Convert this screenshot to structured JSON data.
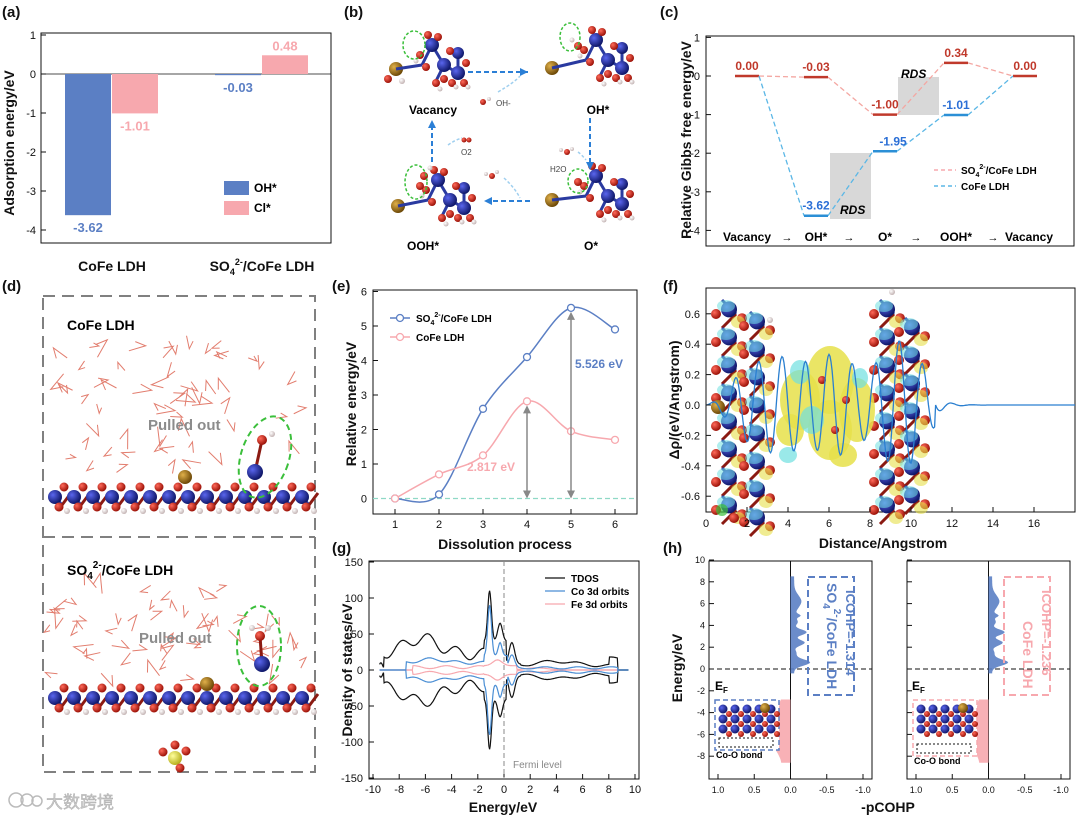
{
  "panels": {
    "a": "(a)",
    "b": "(b)",
    "c": "(c)",
    "d": "(d)",
    "e": "(e)",
    "f": "(f)",
    "g": "(g)",
    "h": "(h)"
  },
  "colors": {
    "blue": "#5b7fc4",
    "pink": "#f7a8ae",
    "red": "#c0392b",
    "lightblue": "#5bb7e6",
    "navy": "#1e2a8c",
    "atomred": "#d02a1f",
    "atomgold": "#a8791c",
    "yellow": "#e6e04a",
    "cyan": "#6fe0e0",
    "green": "#3bbf3b"
  },
  "chart_data": [
    {
      "panel": "a",
      "type": "bar",
      "categories": [
        "CoFe LDH",
        "SO4 2-/CoFe LDH"
      ],
      "series": [
        {
          "name": "OH*",
          "values": [
            -3.62,
            -0.03
          ]
        },
        {
          "name": "Cl*",
          "values": [
            -1.01,
            0.48
          ]
        }
      ],
      "value_labels": [
        "-3.62",
        "-1.01",
        "-0.03",
        "0.48"
      ],
      "ylabel": "Adsorption energy/eV",
      "ylim": [
        -4.6,
        1
      ],
      "yticks": [
        "1",
        "0",
        "-1",
        "-2",
        "-3",
        "-4"
      ],
      "legend": "bottom-right"
    },
    {
      "panel": "c",
      "type": "line",
      "categories": [
        "Vacancy",
        "OH*",
        "O*",
        "OOH*",
        "Vacancy"
      ],
      "series": [
        {
          "name": "SO4 2-/CoFe LDH",
          "values": [
            0.0,
            -0.03,
            -1.0,
            0.34,
            0.0
          ]
        },
        {
          "name": "CoFe LDH",
          "values": [
            0.0,
            -3.62,
            -1.95,
            -1.01,
            0.0
          ]
        }
      ],
      "value_labels": {
        "so4": [
          "0.00",
          "-0.03",
          "-1.00",
          "0.34",
          "0.00"
        ],
        "cofe": [
          "-3.62",
          "-1.95",
          "-1.01"
        ]
      },
      "annotation": "RDS",
      "ylabel": "Relative Gibbs free energy/eV",
      "ylim": [
        -4,
        1
      ],
      "yticks": [
        "1",
        "0",
        "-1",
        "-2",
        "-3",
        "-4"
      ],
      "legend": "right"
    },
    {
      "panel": "e",
      "type": "line",
      "x": [
        1,
        2,
        3,
        4,
        5,
        6
      ],
      "series": [
        {
          "name": "SO4 2-/CoFe LDH",
          "values": [
            0,
            0.12,
            2.6,
            4.1,
            5.526,
            4.9
          ]
        },
        {
          "name": "CoFe LDH",
          "values": [
            0,
            0.7,
            1.25,
            2.817,
            1.95,
            1.7
          ]
        }
      ],
      "annotations": [
        "5.526 eV",
        "2.817 eV"
      ],
      "xlabel": "Dissolution process",
      "ylabel": "Relative energy/eV",
      "xlim": [
        0.5,
        6.5
      ],
      "ylim": [
        -0.5,
        6
      ],
      "xticks": [
        "1",
        "2",
        "3",
        "4",
        "5",
        "6"
      ],
      "yticks": [
        "0",
        "1",
        "2",
        "3",
        "4",
        "5",
        "6"
      ],
      "legend": "top-left"
    },
    {
      "panel": "f",
      "type": "line",
      "xlabel": "Distance/Angstrom",
      "ylabel": "Δρ/(eV/Angstrom)",
      "xlim": [
        0,
        18
      ],
      "ylim": [
        -0.7,
        0.7
      ],
      "xticks": [
        "0",
        "2",
        "4",
        "6",
        "8",
        "10",
        "12",
        "14",
        "16"
      ],
      "yticks": [
        "0.6",
        "0.4",
        "0.2",
        "0.0",
        "-0.2",
        "-0.4",
        "-0.6"
      ]
    },
    {
      "panel": "g",
      "type": "line",
      "series": [
        {
          "name": "TDOS"
        },
        {
          "name": "Co 3d orbits"
        },
        {
          "name": "Fe 3d orbits"
        }
      ],
      "annotation": "Fermi level",
      "xlabel": "Energy/eV",
      "ylabel": "Density of states/eV",
      "xlim": [
        -10,
        10
      ],
      "ylim": [
        -150,
        150
      ],
      "xticks": [
        "-10",
        "-8",
        "-6",
        "-4",
        "-2",
        "0",
        "2",
        "4",
        "6",
        "8",
        "10"
      ],
      "yticks": [
        "150",
        "100",
        "50",
        "0",
        "-50",
        "-100",
        "-150"
      ],
      "legend": "top-right"
    },
    {
      "panel": "h",
      "type": "area",
      "xlabel": "-pCOHP",
      "ylabel": "Energy/eV",
      "xlim": [
        1.0,
        -1.0
      ],
      "ylim": [
        -9,
        10
      ],
      "xticks": [
        "1.0",
        "0.5",
        "0.0",
        "-0.5",
        "-1.0"
      ],
      "yticks": [
        "10",
        "8",
        "6",
        "4",
        "2",
        "0",
        "-2",
        "-4",
        "-6",
        "-8"
      ],
      "ef": "EF",
      "left_box": [
        "SO4 2-/CoFe LDH",
        "ICOHP=-1.314"
      ],
      "right_box": [
        "CoFe LDH",
        "ICOHP=-1.236"
      ],
      "inset": "Co-O bond"
    }
  ],
  "panel_b": {
    "states": [
      "Vacancy",
      "OH*",
      "OOH*",
      "O*"
    ],
    "species": [
      "OH-",
      "O2",
      "H2O"
    ]
  },
  "panel_d": {
    "top_label": "CoFe LDH",
    "bottom_label": "SO4 2-/CoFe LDH",
    "annotation": "Pulled out"
  },
  "watermark": "大数跨境"
}
